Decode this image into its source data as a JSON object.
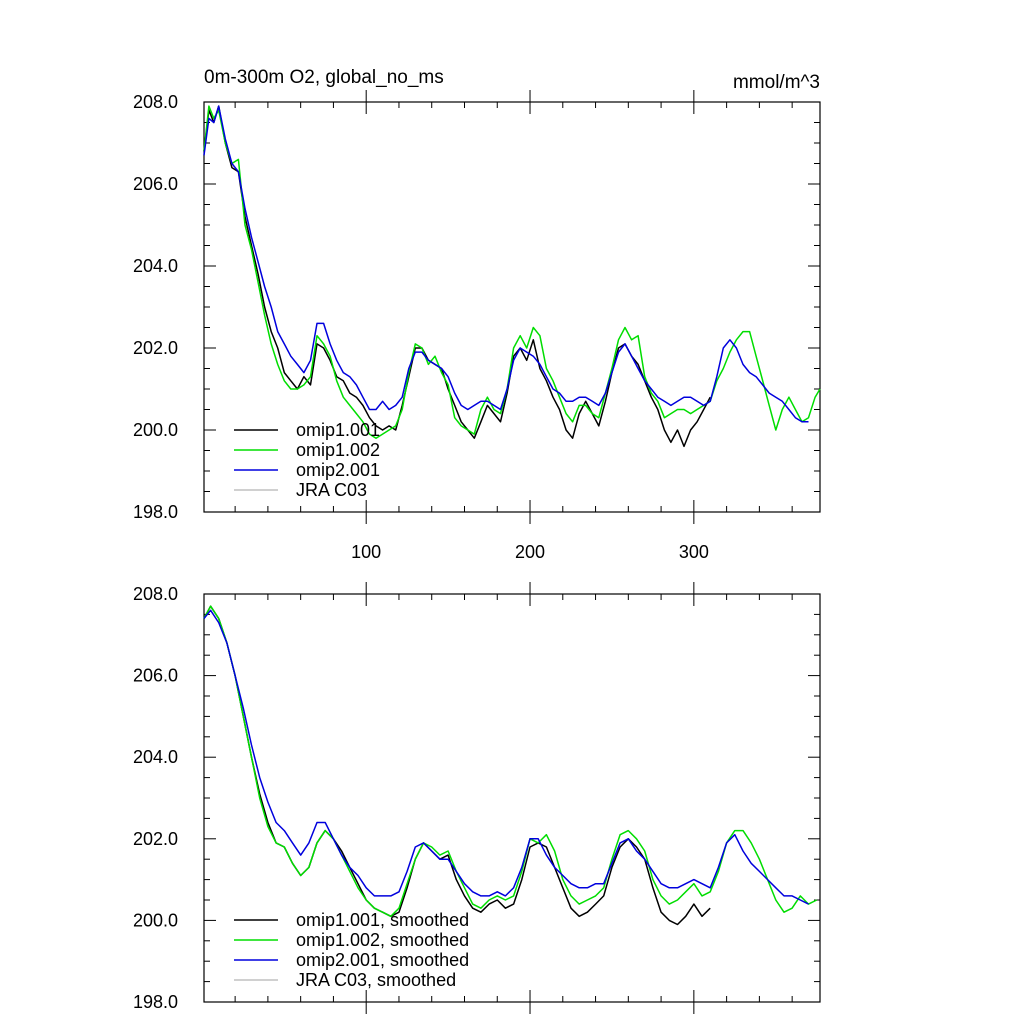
{
  "title_left": "0m-300m O2, global_no_ms",
  "title_right": "mmol/m^3",
  "colors": {
    "omip1_001": "#000000",
    "omip1_002": "#00dd00",
    "omip2_001": "#0000dd",
    "jra_c03": "#c0c0c0"
  },
  "chart_data": [
    {
      "type": "line",
      "panel": "raw",
      "title": "0m-300m O2, global_no_ms",
      "units": "mmol/m^3",
      "xlim": [
        1,
        377
      ],
      "ylim": [
        198,
        208
      ],
      "xticks": [
        100,
        200,
        300
      ],
      "ytick_labels": [
        "198.0",
        "200.0",
        "202.0",
        "204.0",
        "206.0",
        "208.0"
      ],
      "legend": [
        "omip1.001",
        "omip1.002",
        "omip2.001",
        "JRA C03"
      ],
      "series": [
        {
          "name": "omip1.001",
          "x": [
            1,
            4,
            7,
            10,
            14,
            18,
            22,
            26,
            30,
            34,
            38,
            42,
            46,
            50,
            54,
            58,
            62,
            66,
            70,
            74,
            78,
            82,
            86,
            90,
            94,
            98,
            102,
            106,
            110,
            114,
            118,
            122,
            126,
            130,
            134,
            138,
            142,
            146,
            150,
            154,
            158,
            162,
            166,
            170,
            174,
            178,
            182,
            186,
            190,
            194,
            198,
            202,
            206,
            210,
            214,
            218,
            222,
            226,
            230,
            234,
            238,
            242,
            246,
            250,
            254,
            258,
            262,
            266,
            270,
            274,
            278,
            282,
            286,
            290,
            294,
            298,
            302,
            306,
            310
          ],
          "values": [
            206.8,
            207.8,
            207.5,
            207.9,
            207.0,
            206.4,
            206.3,
            205.2,
            204.5,
            203.8,
            203.0,
            202.4,
            202.0,
            201.4,
            201.2,
            201.0,
            201.3,
            201.1,
            202.1,
            202.0,
            201.7,
            201.3,
            201.2,
            200.9,
            200.8,
            200.6,
            200.3,
            200.1,
            200.0,
            200.1,
            200.0,
            200.6,
            201.3,
            202.0,
            202.0,
            201.7,
            201.6,
            201.5,
            201.0,
            200.6,
            200.2,
            200.0,
            199.8,
            200.2,
            200.6,
            200.4,
            200.2,
            200.9,
            201.8,
            202.0,
            201.7,
            202.2,
            201.5,
            201.2,
            200.8,
            200.5,
            200.0,
            199.8,
            200.4,
            200.7,
            200.4,
            200.1,
            200.7,
            201.4,
            202.0,
            202.1,
            201.8,
            201.6,
            201.2,
            200.8,
            200.5,
            200.0,
            199.7,
            200.0,
            199.6,
            200.0,
            200.2,
            200.5,
            200.8
          ]
        },
        {
          "name": "omip1.002",
          "x": [
            1,
            4,
            7,
            10,
            14,
            18,
            22,
            26,
            30,
            34,
            38,
            42,
            46,
            50,
            54,
            58,
            62,
            66,
            70,
            74,
            78,
            82,
            86,
            90,
            94,
            98,
            102,
            106,
            110,
            114,
            118,
            122,
            126,
            130,
            134,
            138,
            142,
            146,
            150,
            154,
            158,
            162,
            166,
            170,
            174,
            178,
            182,
            186,
            190,
            194,
            198,
            202,
            206,
            210,
            214,
            218,
            222,
            226,
            230,
            234,
            238,
            242,
            246,
            250,
            254,
            258,
            262,
            266,
            270,
            274,
            278,
            282,
            286,
            290,
            294,
            298,
            302,
            306,
            310,
            314,
            318,
            322,
            326,
            330,
            334,
            338,
            342,
            346,
            350,
            354,
            358,
            362,
            366,
            370,
            374,
            377
          ],
          "values": [
            206.8,
            207.9,
            207.6,
            207.8,
            207.0,
            206.5,
            206.6,
            205.0,
            204.4,
            203.6,
            202.8,
            202.1,
            201.6,
            201.2,
            201.0,
            201.0,
            201.1,
            201.3,
            202.3,
            202.1,
            201.8,
            201.2,
            200.8,
            200.6,
            200.4,
            200.2,
            199.9,
            199.8,
            199.9,
            200.0,
            200.1,
            200.5,
            201.4,
            202.1,
            202.0,
            201.6,
            201.8,
            201.4,
            201.1,
            200.3,
            200.1,
            200.0,
            199.9,
            200.5,
            200.8,
            200.5,
            200.4,
            201.0,
            202.0,
            202.3,
            202.0,
            202.5,
            202.3,
            201.5,
            201.2,
            200.8,
            200.4,
            200.2,
            200.6,
            200.6,
            200.4,
            200.3,
            200.9,
            201.5,
            202.2,
            202.5,
            202.2,
            202.3,
            201.3,
            200.9,
            200.7,
            200.3,
            200.4,
            200.5,
            200.5,
            200.4,
            200.5,
            200.6,
            200.7,
            201.2,
            201.5,
            201.9,
            202.2,
            202.4,
            202.4,
            201.8,
            201.2,
            200.6,
            200.0,
            200.5,
            200.8,
            200.5,
            200.2,
            200.3,
            200.8,
            201.0
          ]
        },
        {
          "name": "omip2.001",
          "x": [
            1,
            4,
            7,
            10,
            14,
            18,
            22,
            26,
            30,
            34,
            38,
            42,
            46,
            50,
            54,
            58,
            62,
            66,
            70,
            74,
            78,
            82,
            86,
            90,
            94,
            98,
            102,
            106,
            110,
            114,
            118,
            122,
            126,
            130,
            134,
            138,
            142,
            146,
            150,
            154,
            158,
            162,
            166,
            170,
            174,
            178,
            182,
            186,
            190,
            194,
            198,
            202,
            206,
            210,
            214,
            218,
            222,
            226,
            230,
            234,
            238,
            242,
            246,
            250,
            254,
            258,
            262,
            266,
            270,
            274,
            278,
            282,
            286,
            290,
            294,
            298,
            302,
            306,
            310,
            314,
            318,
            322,
            326,
            330,
            334,
            338,
            342,
            346,
            350,
            354,
            358,
            362,
            366,
            370
          ],
          "values": [
            206.7,
            207.6,
            207.5,
            207.9,
            207.1,
            206.5,
            206.3,
            205.4,
            204.7,
            204.1,
            203.5,
            203.0,
            202.4,
            202.1,
            201.8,
            201.6,
            201.4,
            201.7,
            202.6,
            202.6,
            202.1,
            201.7,
            201.4,
            201.3,
            201.1,
            200.8,
            200.5,
            200.5,
            200.7,
            200.5,
            200.6,
            200.8,
            201.5,
            201.9,
            201.9,
            201.7,
            201.6,
            201.5,
            201.3,
            200.9,
            200.6,
            200.5,
            200.6,
            200.7,
            200.7,
            200.6,
            200.5,
            201.0,
            201.7,
            202.0,
            201.9,
            201.8,
            201.6,
            201.3,
            201.0,
            200.9,
            200.7,
            200.7,
            200.8,
            200.8,
            200.7,
            200.6,
            200.9,
            201.4,
            201.9,
            202.1,
            201.8,
            201.5,
            201.2,
            201.0,
            200.8,
            200.7,
            200.6,
            200.7,
            200.8,
            200.8,
            200.7,
            200.6,
            200.7,
            201.3,
            202.0,
            202.2,
            202.0,
            201.6,
            201.4,
            201.3,
            201.1,
            200.9,
            200.8,
            200.7,
            200.5,
            200.3,
            200.2,
            200.2
          ]
        }
      ]
    },
    {
      "type": "line",
      "panel": "smoothed",
      "xlim": [
        1,
        377
      ],
      "ylim": [
        198,
        208
      ],
      "xticks": [
        100,
        200,
        300
      ],
      "ytick_labels": [
        "198.0",
        "200.0",
        "202.0",
        "204.0",
        "206.0",
        "208.0"
      ],
      "legend": [
        "omip1.001, smoothed",
        "omip1.002, smoothed",
        "omip2.001, smoothed",
        "JRA C03, smoothed"
      ],
      "series": [
        {
          "name": "omip1.001, smoothed",
          "x": [
            1,
            5,
            10,
            15,
            20,
            25,
            30,
            35,
            40,
            45,
            50,
            55,
            60,
            65,
            70,
            75,
            80,
            85,
            90,
            95,
            100,
            105,
            110,
            115,
            120,
            125,
            130,
            135,
            140,
            145,
            150,
            155,
            160,
            165,
            170,
            175,
            180,
            185,
            190,
            195,
            200,
            205,
            210,
            215,
            220,
            225,
            230,
            235,
            240,
            245,
            250,
            255,
            260,
            265,
            270,
            275,
            280,
            285,
            290,
            295,
            300,
            305,
            310
          ],
          "values": [
            207.4,
            207.7,
            207.4,
            206.8,
            206.0,
            205.0,
            204.0,
            203.1,
            202.4,
            201.9,
            201.8,
            201.4,
            201.1,
            201.3,
            201.9,
            202.2,
            202.0,
            201.7,
            201.3,
            200.9,
            200.5,
            200.3,
            200.2,
            200.1,
            200.2,
            200.8,
            201.5,
            201.9,
            201.7,
            201.5,
            201.6,
            201.0,
            200.6,
            200.3,
            200.2,
            200.4,
            200.5,
            200.3,
            200.4,
            201.0,
            201.8,
            201.9,
            201.8,
            201.3,
            200.8,
            200.3,
            200.1,
            200.2,
            200.4,
            200.6,
            201.3,
            201.8,
            202.0,
            201.8,
            201.5,
            200.8,
            200.2,
            200.0,
            199.9,
            200.1,
            200.4,
            200.1,
            200.3
          ]
        },
        {
          "name": "omip1.002, smoothed",
          "x": [
            1,
            5,
            10,
            15,
            20,
            25,
            30,
            35,
            40,
            45,
            50,
            55,
            60,
            65,
            70,
            75,
            80,
            85,
            90,
            95,
            100,
            105,
            110,
            115,
            120,
            125,
            130,
            135,
            140,
            145,
            150,
            155,
            160,
            165,
            170,
            175,
            180,
            185,
            190,
            195,
            200,
            205,
            210,
            215,
            220,
            225,
            230,
            235,
            240,
            245,
            250,
            255,
            260,
            265,
            270,
            275,
            280,
            285,
            290,
            295,
            300,
            305,
            310,
            315,
            320,
            325,
            330,
            335,
            340,
            345,
            350,
            355,
            360,
            365,
            370,
            375
          ],
          "values": [
            207.4,
            207.7,
            207.4,
            206.8,
            206.0,
            205.0,
            204.0,
            203.0,
            202.3,
            201.9,
            201.8,
            201.4,
            201.1,
            201.3,
            201.9,
            202.2,
            202.0,
            201.6,
            201.2,
            200.8,
            200.5,
            200.3,
            200.2,
            200.1,
            200.3,
            200.9,
            201.5,
            201.9,
            201.8,
            201.6,
            201.7,
            201.2,
            200.8,
            200.4,
            200.3,
            200.5,
            200.6,
            200.5,
            200.6,
            201.2,
            202.0,
            201.9,
            202.1,
            201.7,
            201.0,
            200.6,
            200.4,
            200.5,
            200.6,
            200.8,
            201.5,
            202.1,
            202.2,
            202.0,
            201.7,
            201.0,
            200.6,
            200.4,
            200.5,
            200.7,
            200.9,
            200.6,
            200.7,
            201.2,
            201.9,
            202.2,
            202.2,
            201.9,
            201.5,
            201.0,
            200.5,
            200.2,
            200.3,
            200.6,
            200.4,
            200.5
          ]
        },
        {
          "name": "omip2.001, smoothed",
          "x": [
            1,
            5,
            10,
            15,
            20,
            25,
            30,
            35,
            40,
            45,
            50,
            55,
            60,
            65,
            70,
            75,
            80,
            85,
            90,
            95,
            100,
            105,
            110,
            115,
            120,
            125,
            130,
            135,
            140,
            145,
            150,
            155,
            160,
            165,
            170,
            175,
            180,
            185,
            190,
            195,
            200,
            205,
            210,
            215,
            220,
            225,
            230,
            235,
            240,
            245,
            250,
            255,
            260,
            265,
            270,
            275,
            280,
            285,
            290,
            295,
            300,
            305,
            310,
            315,
            320,
            325,
            330,
            335,
            340,
            345,
            350,
            355,
            360,
            365,
            370
          ],
          "values": [
            207.4,
            207.6,
            207.3,
            206.8,
            206.0,
            205.2,
            204.3,
            203.5,
            202.9,
            202.4,
            202.2,
            201.9,
            201.6,
            201.9,
            202.4,
            202.4,
            202.0,
            201.6,
            201.3,
            201.1,
            200.8,
            200.6,
            200.6,
            200.6,
            200.7,
            201.2,
            201.8,
            201.9,
            201.7,
            201.5,
            201.5,
            201.2,
            200.9,
            200.7,
            200.6,
            200.6,
            200.7,
            200.6,
            200.8,
            201.3,
            202.0,
            202.0,
            201.6,
            201.3,
            201.1,
            200.9,
            200.8,
            200.8,
            200.9,
            200.9,
            201.4,
            201.9,
            202.0,
            201.7,
            201.5,
            201.2,
            200.9,
            200.8,
            200.8,
            200.9,
            201.0,
            200.9,
            200.8,
            201.3,
            201.9,
            202.1,
            201.7,
            201.4,
            201.2,
            201.0,
            200.8,
            200.6,
            200.6,
            200.5,
            200.4
          ]
        }
      ]
    }
  ]
}
